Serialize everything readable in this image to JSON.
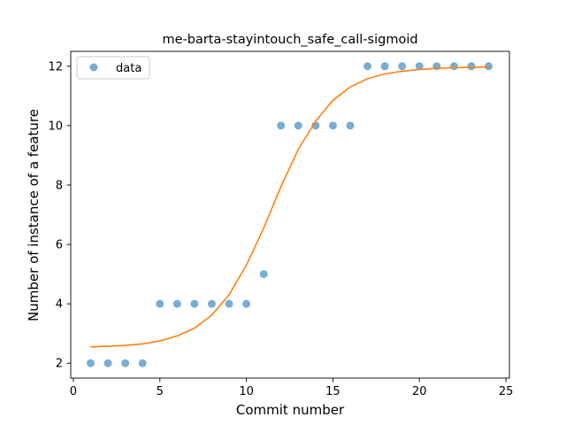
{
  "chart_data": {
    "type": "scatter",
    "title": "me-barta-stayintouch_safe_call-sigmoid",
    "xlabel": "Commit number",
    "ylabel": "Number of instance of a feature",
    "xlim": [
      -0.15,
      25.2
    ],
    "ylim": [
      1.5,
      12.5
    ],
    "xticks": [
      0,
      5,
      10,
      15,
      20,
      25
    ],
    "yticks": [
      2,
      4,
      6,
      8,
      10,
      12
    ],
    "grid": false,
    "legend": {
      "position": "top-left",
      "entries": [
        "data"
      ]
    },
    "series": [
      {
        "name": "data",
        "kind": "scatter",
        "color": "#1f77b4",
        "x": [
          1,
          2,
          3,
          4,
          5,
          6,
          7,
          8,
          9,
          10,
          11,
          12,
          13,
          14,
          15,
          16,
          17,
          18,
          19,
          20,
          21,
          22,
          23,
          24
        ],
        "y": [
          2,
          2,
          2,
          2,
          4,
          4,
          4,
          4,
          4,
          4,
          5,
          10,
          10,
          10,
          10,
          10,
          12,
          12,
          12,
          12,
          12,
          12,
          12,
          12
        ]
      },
      {
        "kind": "line",
        "color": "#ff7f0e",
        "x": [
          1,
          2,
          3,
          4,
          5,
          6,
          7,
          8,
          9,
          10,
          11,
          12,
          13,
          14,
          15,
          16,
          17,
          18,
          19,
          20,
          21,
          22,
          23,
          24
        ],
        "y": [
          2.55,
          2.57,
          2.6,
          2.65,
          2.75,
          2.92,
          3.18,
          3.62,
          4.3,
          5.3,
          6.55,
          7.95,
          9.2,
          10.15,
          10.85,
          11.3,
          11.58,
          11.74,
          11.83,
          11.89,
          11.93,
          11.95,
          11.96,
          11.97
        ]
      }
    ]
  }
}
